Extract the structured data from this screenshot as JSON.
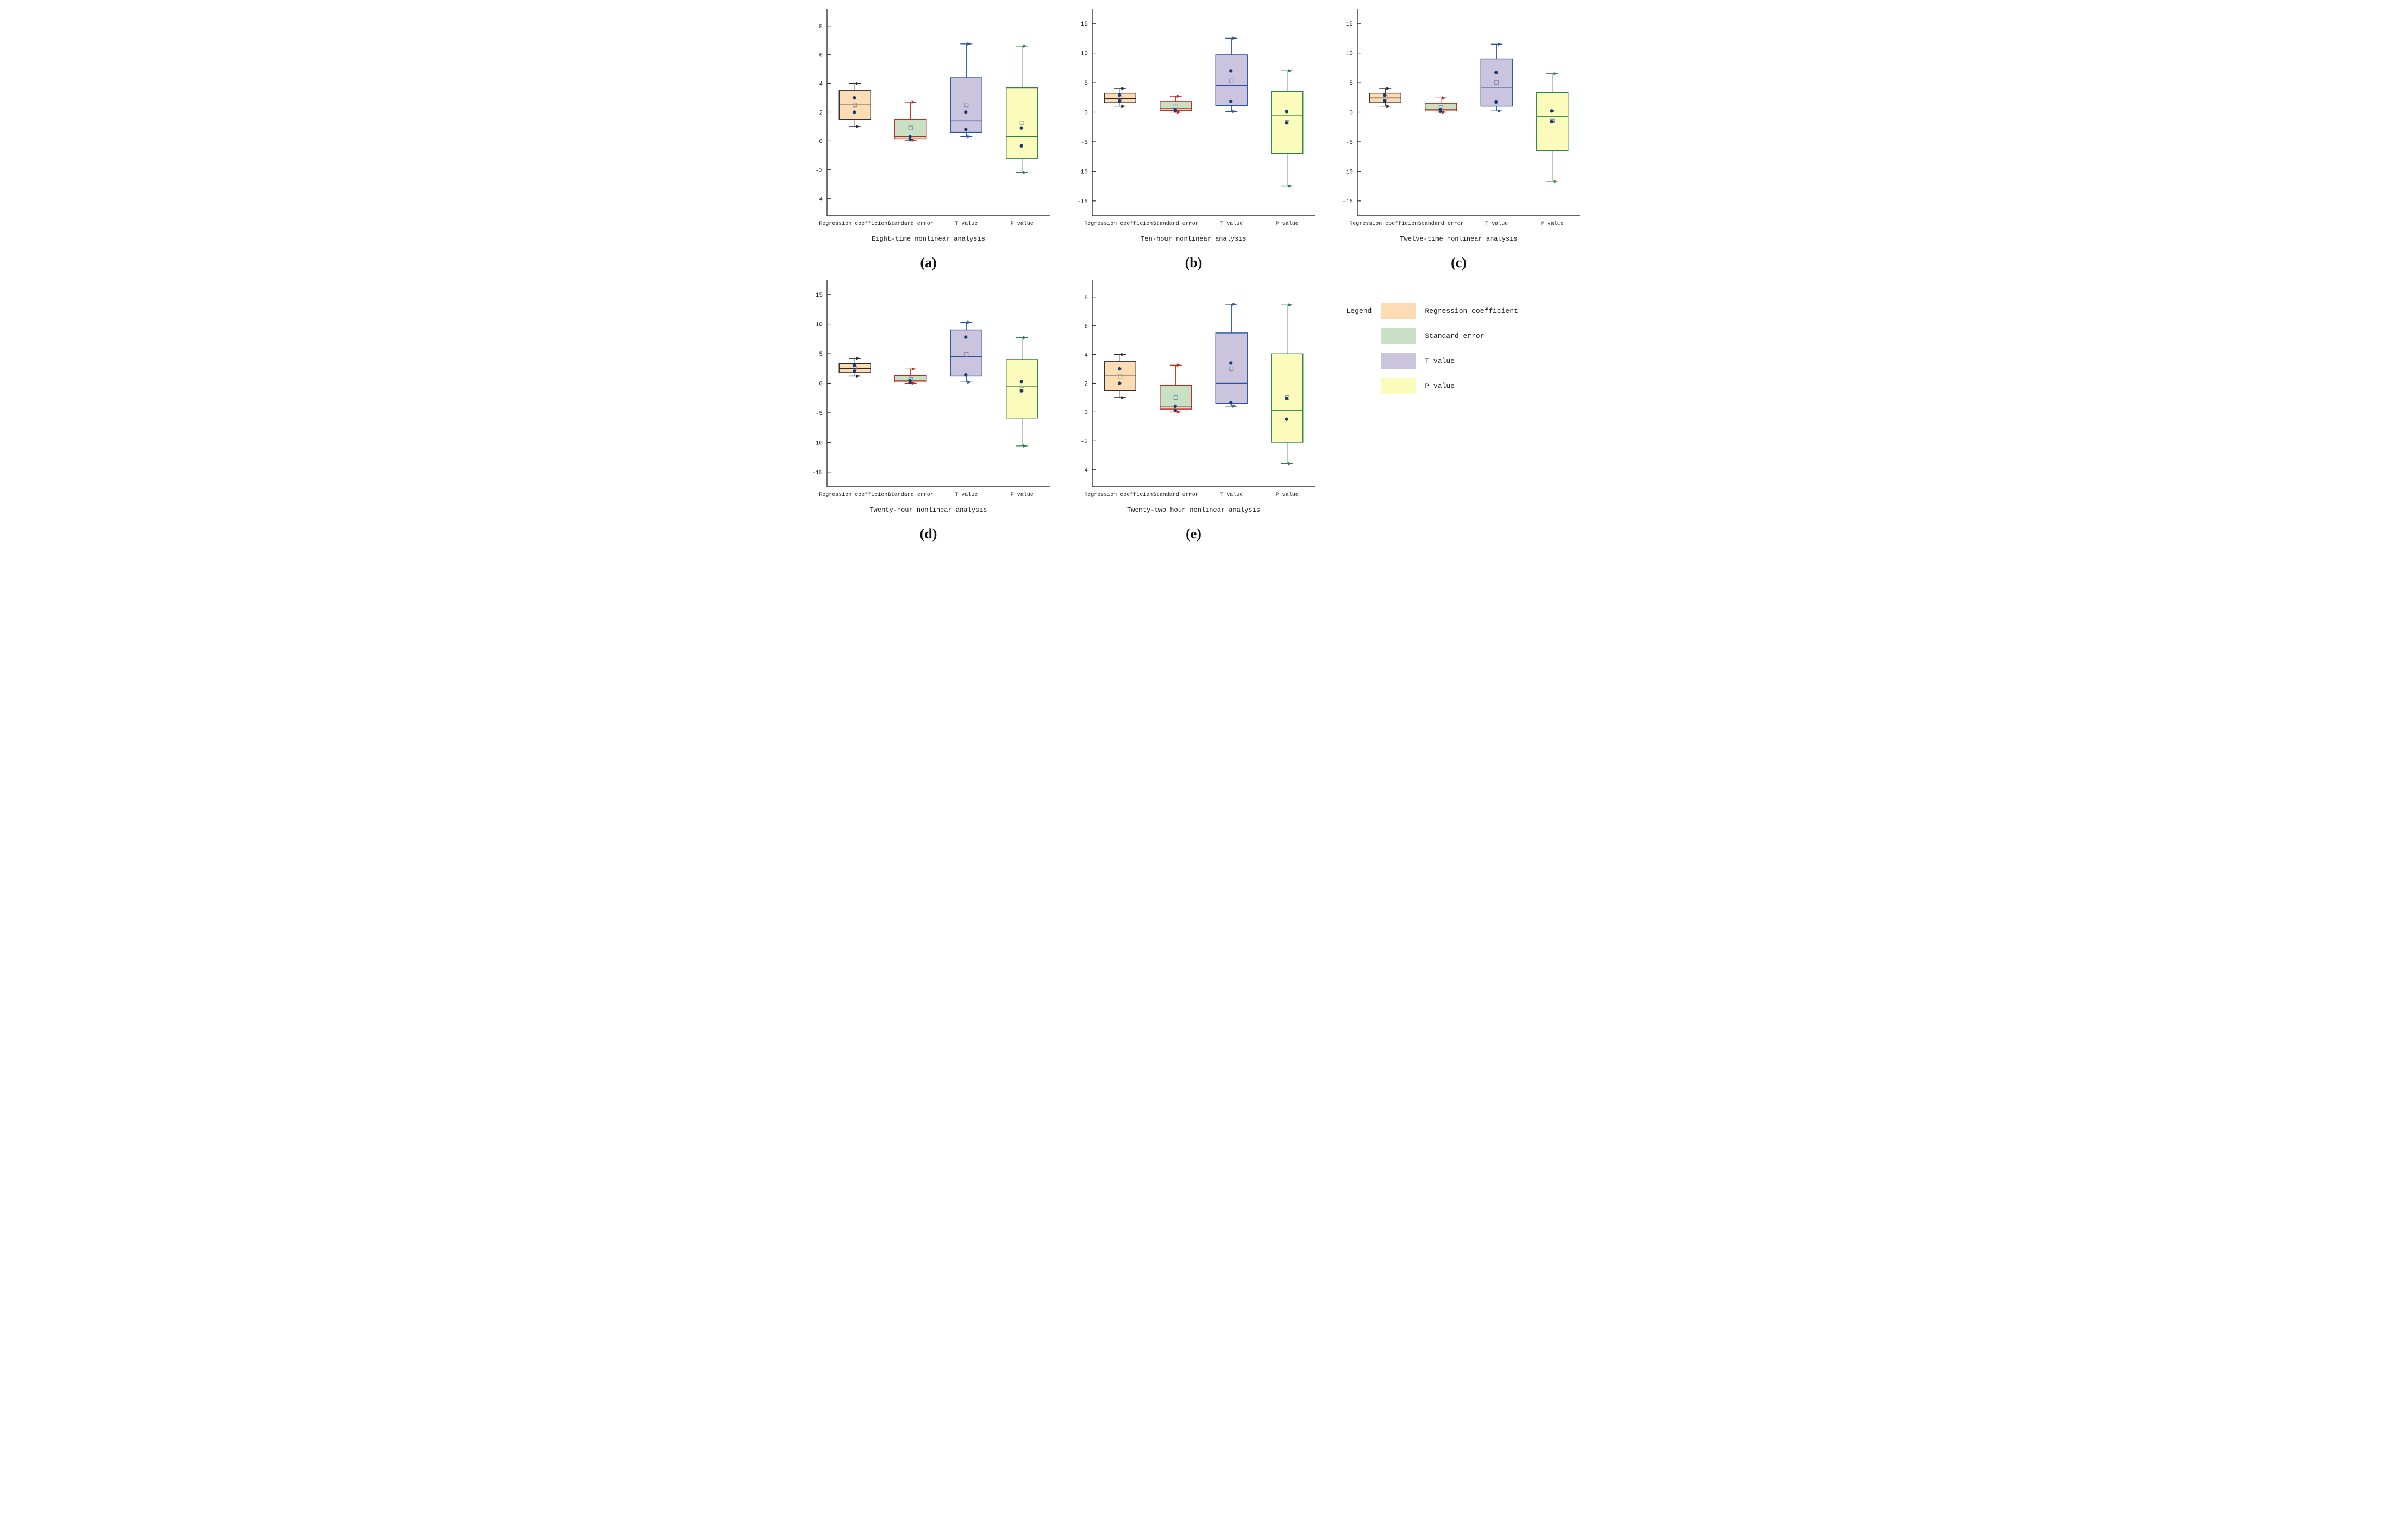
{
  "figure": {
    "background": "#ffffff"
  },
  "legend": {
    "title": "Legend",
    "entries": [
      {
        "label": "Regression coefficient",
        "color": "#fbdcb4"
      },
      {
        "label": "Standard error",
        "color": "#c8e0c4"
      },
      {
        "label": "T value",
        "color": "#cbc4df"
      },
      {
        "label": "P value",
        "color": "#fbfbbc"
      }
    ]
  },
  "series_styles": {
    "Regression coefficient": {
      "fill": "#fbdcb4",
      "stroke": "#2b2b2b"
    },
    "Standard error": {
      "fill": "#c8e0c4",
      "stroke": "#c0281e"
    },
    "T value": {
      "fill": "#cbc4df",
      "stroke": "#2a52a0"
    },
    "P value": {
      "fill": "#fbfbbc",
      "stroke": "#2e8049"
    }
  },
  "marker_styles": {
    "point_color": "#1b3b6f",
    "mean_stroke": "#8a8fa0"
  },
  "chart_data": [
    {
      "type": "box",
      "panel_label": "(a)",
      "xlabel": "Eight-time nonlinear analysis",
      "categories": [
        "Regression coefficient",
        "Standard error",
        "T value",
        "P value"
      ],
      "ylim": [
        -5.2,
        9.2
      ],
      "yticks": [
        -4,
        -2,
        0,
        2,
        4,
        6,
        8
      ],
      "boxes": [
        {
          "series": "Regression coefficient",
          "whisker_low": 1.0,
          "q1": 1.5,
          "median": 2.5,
          "q3": 3.5,
          "whisker_high": 4.0,
          "mean": 2.5,
          "points": [
            3.0,
            2.0
          ]
        },
        {
          "series": "Standard error",
          "whisker_low": 0.05,
          "q1": 0.15,
          "median": 0.3,
          "q3": 1.5,
          "whisker_high": 2.7,
          "mean": 0.9,
          "points": [
            0.3,
            0.1
          ]
        },
        {
          "series": "T value",
          "whisker_low": 0.3,
          "q1": 0.6,
          "median": 1.4,
          "q3": 4.4,
          "whisker_high": 6.75,
          "mean": 2.5,
          "points": [
            2.0,
            0.8
          ]
        },
        {
          "series": "P value",
          "whisker_low": -2.2,
          "q1": -1.2,
          "median": 0.3,
          "q3": 3.7,
          "whisker_high": 6.6,
          "mean": 1.25,
          "points": [
            0.9,
            -0.35
          ]
        }
      ]
    },
    {
      "type": "box",
      "panel_label": "(b)",
      "xlabel": "Ten-hour nonlinear analysis",
      "categories": [
        "Regression coefficient",
        "Standard error",
        "T value",
        "P value"
      ],
      "ylim": [
        -17.5,
        17.5
      ],
      "yticks": [
        -15,
        -10,
        -5,
        0,
        5,
        10,
        15
      ],
      "boxes": [
        {
          "series": "Regression coefficient",
          "whisker_low": 1.0,
          "q1": 1.6,
          "median": 2.3,
          "q3": 3.2,
          "whisker_high": 4.0,
          "mean": 2.4,
          "points": [
            2.9,
            1.9
          ]
        },
        {
          "series": "Standard error",
          "whisker_low": 0.0,
          "q1": 0.25,
          "median": 0.6,
          "q3": 1.8,
          "whisker_high": 2.7,
          "mean": 0.9,
          "points": [
            0.5,
            0.2
          ]
        },
        {
          "series": "T value",
          "whisker_low": 0.1,
          "q1": 1.1,
          "median": 4.5,
          "q3": 9.7,
          "whisker_high": 12.5,
          "mean": 5.3,
          "points": [
            7.0,
            1.8
          ]
        },
        {
          "series": "P value",
          "whisker_low": -12.5,
          "q1": -7.0,
          "median": -0.6,
          "q3": 3.5,
          "whisker_high": 7.0,
          "mean": -1.7,
          "points": [
            0.1,
            -1.8
          ]
        }
      ]
    },
    {
      "type": "box",
      "panel_label": "(c)",
      "xlabel": "Twelve-time nonlinear analysis",
      "categories": [
        "Regression coefficient",
        "Standard error",
        "T value",
        "P value"
      ],
      "ylim": [
        -17.5,
        17.5
      ],
      "yticks": [
        -15,
        -10,
        -5,
        0,
        5,
        10,
        15
      ],
      "boxes": [
        {
          "series": "Regression coefficient",
          "whisker_low": 1.0,
          "q1": 1.6,
          "median": 2.4,
          "q3": 3.2,
          "whisker_high": 4.0,
          "mean": 2.5,
          "points": [
            2.9,
            1.9
          ]
        },
        {
          "series": "Standard error",
          "whisker_low": 0.0,
          "q1": 0.2,
          "median": 0.5,
          "q3": 1.5,
          "whisker_high": 2.4,
          "mean": 0.8,
          "points": [
            0.45,
            0.15
          ]
        },
        {
          "series": "T value",
          "whisker_low": 0.2,
          "q1": 1.0,
          "median": 4.2,
          "q3": 9.0,
          "whisker_high": 11.5,
          "mean": 5.0,
          "points": [
            6.7,
            1.7
          ]
        },
        {
          "series": "P value",
          "whisker_low": -11.7,
          "q1": -6.5,
          "median": -0.7,
          "q3": 3.3,
          "whisker_high": 6.5,
          "mean": -1.5,
          "points": [
            0.2,
            -1.6
          ]
        }
      ]
    },
    {
      "type": "box",
      "panel_label": "(d)",
      "xlabel": "Twenty-hour nonlinear analysis",
      "categories": [
        "Regression coefficient",
        "Standard error",
        "T value",
        "P value"
      ],
      "ylim": [
        -17.5,
        17.5
      ],
      "yticks": [
        -15,
        -10,
        -5,
        0,
        5,
        10,
        15
      ],
      "boxes": [
        {
          "series": "Regression coefficient",
          "whisker_low": 1.2,
          "q1": 1.8,
          "median": 2.5,
          "q3": 3.3,
          "whisker_high": 4.2,
          "mean": 2.6,
          "points": [
            3.0,
            2.0
          ]
        },
        {
          "series": "Standard error",
          "whisker_low": 0.0,
          "q1": 0.2,
          "median": 0.5,
          "q3": 1.3,
          "whisker_high": 2.4,
          "mean": 0.7,
          "points": [
            0.45,
            0.15
          ]
        },
        {
          "series": "T value",
          "whisker_low": 0.2,
          "q1": 1.2,
          "median": 4.5,
          "q3": 9.0,
          "whisker_high": 10.3,
          "mean": 4.9,
          "points": [
            7.8,
            1.4
          ]
        },
        {
          "series": "P value",
          "whisker_low": -10.6,
          "q1": -5.9,
          "median": -0.6,
          "q3": 4.0,
          "whisker_high": 7.7,
          "mean": -1.0,
          "points": [
            0.3,
            -1.3
          ]
        }
      ]
    },
    {
      "type": "box",
      "panel_label": "(e)",
      "xlabel": "Twenty-two hour nonlinear analysis",
      "categories": [
        "Regression coefficient",
        "Standard error",
        "T value",
        "P value"
      ],
      "ylim": [
        -5.2,
        9.2
      ],
      "yticks": [
        -4,
        -2,
        0,
        2,
        4,
        6,
        8
      ],
      "boxes": [
        {
          "series": "Regression coefficient",
          "whisker_low": 1.0,
          "q1": 1.5,
          "median": 2.5,
          "q3": 3.5,
          "whisker_high": 4.0,
          "mean": 2.5,
          "points": [
            3.0,
            2.0
          ]
        },
        {
          "series": "Standard error",
          "whisker_low": 0.0,
          "q1": 0.2,
          "median": 0.4,
          "q3": 1.85,
          "whisker_high": 3.25,
          "mean": 1.0,
          "points": [
            0.4,
            0.1
          ]
        },
        {
          "series": "T value",
          "whisker_low": 0.4,
          "q1": 0.6,
          "median": 2.0,
          "q3": 5.5,
          "whisker_high": 7.5,
          "mean": 3.0,
          "points": [
            3.4,
            0.65
          ]
        },
        {
          "series": "P value",
          "whisker_low": -3.6,
          "q1": -2.1,
          "median": 0.1,
          "q3": 4.05,
          "whisker_high": 7.45,
          "mean": 1.0,
          "points": [
            0.95,
            -0.5
          ]
        }
      ]
    }
  ]
}
